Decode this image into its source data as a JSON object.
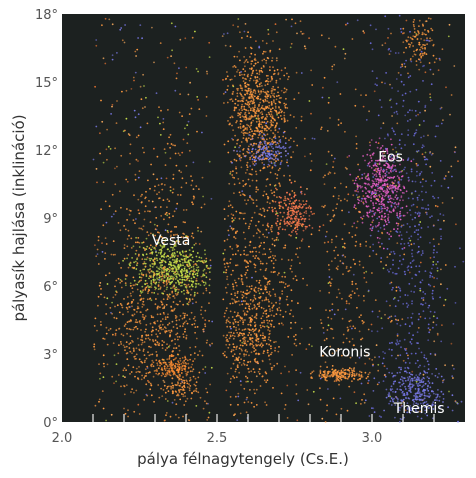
{
  "chart_data": {
    "type": "scatter",
    "title": "",
    "xlabel": "pálya félnagytengely (Cs.E.)",
    "ylabel": "pályasík hajlása (inklináció)",
    "xlim": [
      2.0,
      3.3
    ],
    "ylim": [
      0,
      18
    ],
    "x_ticks": [
      {
        "value": 2.0,
        "label": "2.0"
      },
      {
        "value": 2.5,
        "label": "2.5"
      },
      {
        "value": 3.0,
        "label": "3.0"
      }
    ],
    "y_ticks": [
      {
        "value": 0,
        "label": "0°"
      },
      {
        "value": 3,
        "label": "3°"
      },
      {
        "value": 6,
        "label": "6°"
      },
      {
        "value": 9,
        "label": "9°"
      },
      {
        "value": 12,
        "label": "12°"
      },
      {
        "value": 15,
        "label": "15°"
      },
      {
        "value": 18,
        "label": "18°"
      }
    ],
    "grid": false,
    "background": "#1c2120",
    "families": [
      {
        "name": "Vesta",
        "label_x": 2.29,
        "label_y": 7.8,
        "center_x": 2.36,
        "center_y": 6.8,
        "color": "#c8e04a"
      },
      {
        "name": "Eos",
        "label_x": 3.02,
        "label_y": 11.5,
        "center_x": 3.03,
        "center_y": 10.3,
        "color": "#e860c8"
      },
      {
        "name": "Koronis",
        "label_x": 2.83,
        "label_y": 2.9,
        "center_x": 2.89,
        "center_y": 2.1,
        "color": "#ff9a40"
      },
      {
        "name": "Themis",
        "label_x": 3.07,
        "label_y": 0.4,
        "center_x": 3.14,
        "center_y": 1.3,
        "color": "#7a7ae8"
      }
    ],
    "clusters": [
      {
        "cx": 2.3,
        "cy": 4.5,
        "sx": 0.09,
        "sy": 2.2,
        "n": 700,
        "color": "#ff9a40",
        "xmin": 2.1,
        "xmax": 2.49
      },
      {
        "cx": 2.36,
        "cy": 6.8,
        "sx": 0.06,
        "sy": 0.6,
        "n": 500,
        "color": "#c8e04a",
        "xmin": 2.15,
        "xmax": 2.49
      },
      {
        "cx": 2.36,
        "cy": 2.4,
        "sx": 0.03,
        "sy": 0.25,
        "n": 120,
        "color": "#ff8c30",
        "xmin": 2.2,
        "xmax": 2.49
      },
      {
        "cx": 2.38,
        "cy": 1.5,
        "sx": 0.03,
        "sy": 0.3,
        "n": 80,
        "color": "#ff9a40",
        "xmin": 2.2,
        "xmax": 2.49
      },
      {
        "cx": 2.3,
        "cy": 8.5,
        "sx": 0.1,
        "sy": 3.0,
        "n": 250,
        "color": "#ff9a40",
        "xmin": 2.1,
        "xmax": 2.49
      },
      {
        "cx": 2.63,
        "cy": 13.8,
        "sx": 0.05,
        "sy": 1.2,
        "n": 650,
        "color": "#ff9a40",
        "xmin": 2.52,
        "xmax": 3.3
      },
      {
        "cx": 2.66,
        "cy": 11.9,
        "sx": 0.04,
        "sy": 0.35,
        "n": 150,
        "color": "#7a7ae8",
        "xmin": 2.52,
        "xmax": 3.3
      },
      {
        "cx": 2.63,
        "cy": 8.5,
        "sx": 0.07,
        "sy": 3.0,
        "n": 500,
        "color": "#ff9a40",
        "xmin": 2.52,
        "xmax": 2.82
      },
      {
        "cx": 2.75,
        "cy": 9.2,
        "sx": 0.03,
        "sy": 0.5,
        "n": 200,
        "color": "#ff7a50",
        "xmin": 2.52,
        "xmax": 3.3
      },
      {
        "cx": 2.6,
        "cy": 4.0,
        "sx": 0.06,
        "sy": 1.5,
        "n": 500,
        "color": "#ff9a40",
        "xmin": 2.52,
        "xmax": 2.82
      },
      {
        "cx": 2.89,
        "cy": 2.1,
        "sx": 0.04,
        "sy": 0.15,
        "n": 180,
        "color": "#ff9a40",
        "xmin": 2.8,
        "xmax": 3.3
      },
      {
        "cx": 3.03,
        "cy": 10.3,
        "sx": 0.04,
        "sy": 0.9,
        "n": 450,
        "color": "#e860c8",
        "xmin": 2.83,
        "xmax": 3.3
      },
      {
        "cx": 3.14,
        "cy": 1.3,
        "sx": 0.05,
        "sy": 0.6,
        "n": 300,
        "color": "#7a7ae8",
        "xmin": 2.83,
        "xmax": 3.3
      },
      {
        "cx": 3.12,
        "cy": 8.0,
        "sx": 0.06,
        "sy": 4.5,
        "n": 500,
        "color": "#6a6ad8",
        "xmin": 2.83,
        "xmax": 3.3
      },
      {
        "cx": 3.15,
        "cy": 16.8,
        "sx": 0.03,
        "sy": 0.6,
        "n": 100,
        "color": "#ff9a40",
        "xmin": 2.83,
        "xmax": 3.3
      },
      {
        "cx": 2.9,
        "cy": 6.5,
        "sx": 0.08,
        "sy": 3.5,
        "n": 300,
        "color": "#ff9a40",
        "xmin": 2.83,
        "xmax": 3.3
      }
    ],
    "background_points": {
      "n": 700,
      "colors": [
        "#ff9a40",
        "#e07030",
        "#7a7ae8",
        "#c8e04a",
        "#ffb060"
      ]
    }
  }
}
